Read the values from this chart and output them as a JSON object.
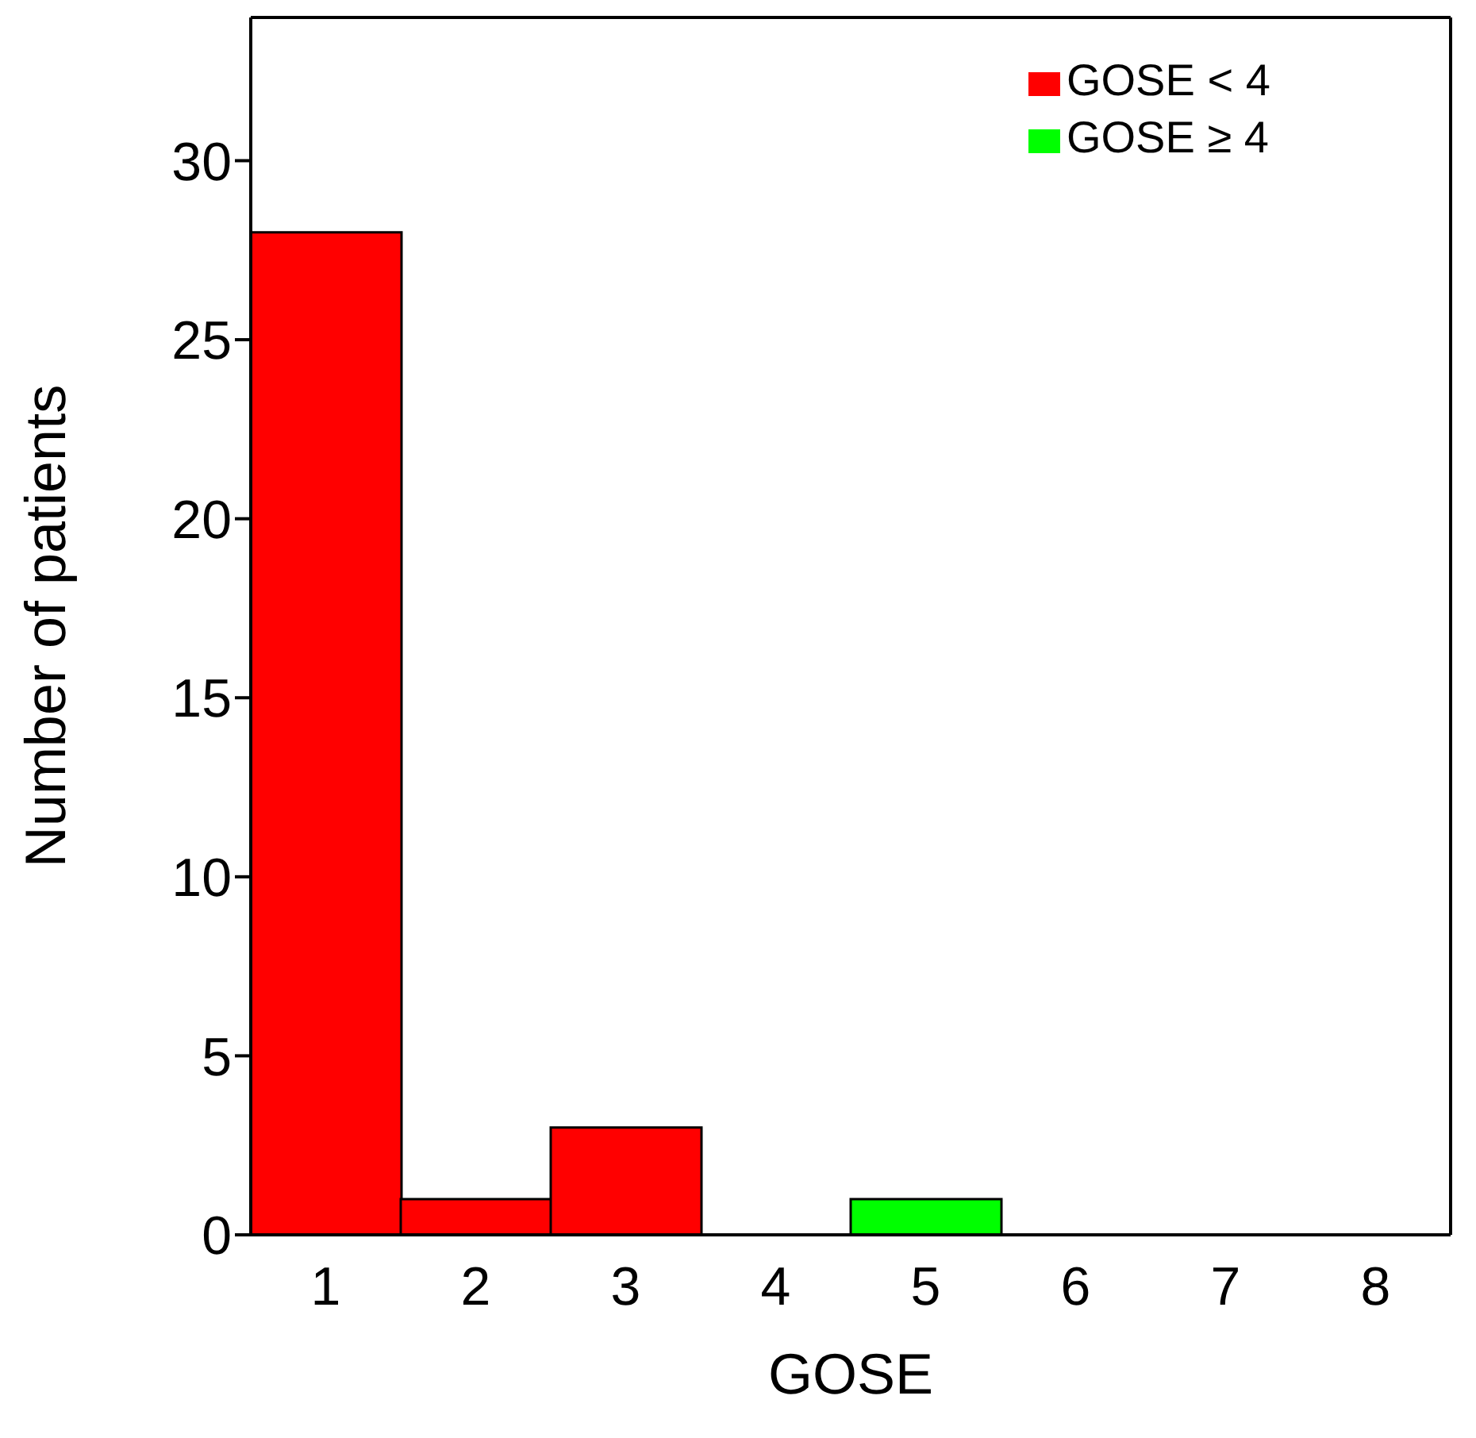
{
  "chart_data": {
    "type": "bar",
    "xlabel": "GOSE",
    "ylabel": "Number of patients",
    "categories": [
      "1",
      "2",
      "3",
      "4",
      "5",
      "6",
      "7",
      "8"
    ],
    "stacked": true,
    "series": [
      {
        "name": "GOSE < 4",
        "color": "#ff0000",
        "values": [
          28,
          1,
          3,
          null,
          null,
          null,
          null,
          null
        ]
      },
      {
        "name": "GOSE ≥ 4",
        "color": "#00ff00",
        "values": [
          null,
          null,
          null,
          0,
          1,
          0,
          0,
          0
        ]
      }
    ],
    "ylim": [
      0,
      34
    ],
    "yticks": [
      0,
      5,
      10,
      15,
      20,
      25,
      30
    ],
    "legend": "top right"
  }
}
